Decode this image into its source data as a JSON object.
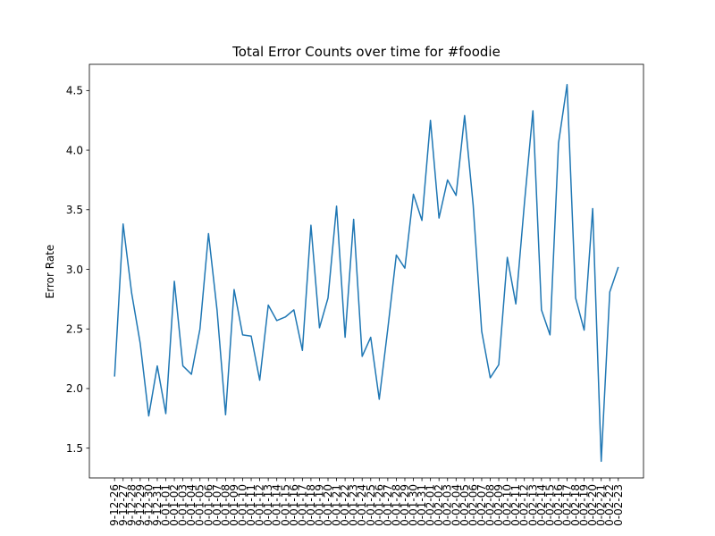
{
  "chart_data": {
    "type": "line",
    "title": "Total Error Counts over time for #foodie",
    "xlabel": "",
    "ylabel": "Error Rate",
    "ylim": [
      1.25,
      4.72
    ],
    "yticks": [
      "1.5",
      "2.0",
      "2.5",
      "3.0",
      "3.5",
      "4.0",
      "4.5"
    ],
    "grid": false,
    "x": [
      "9-12-26",
      "9-12-27",
      "9-12-28",
      "9-12-29",
      "9-12-30",
      "9-12-31",
      "0-01-01",
      "0-01-02",
      "0-01-03",
      "0-01-04",
      "0-01-05",
      "0-01-06",
      "0-01-07",
      "0-01-08",
      "0-01-09",
      "0-01-10",
      "0-01-11",
      "0-01-12",
      "0-01-13",
      "0-01-14",
      "0-01-15",
      "0-01-16",
      "0-01-17",
      "0-01-18",
      "0-01-19",
      "0-01-20",
      "0-01-21",
      "0-01-22",
      "0-01-23",
      "0-01-24",
      "0-01-25",
      "0-01-26",
      "0-01-27",
      "0-01-28",
      "0-01-29",
      "0-01-30",
      "0-01-31",
      "0-02-01",
      "0-02-02",
      "0-02-03",
      "0-02-04",
      "0-02-05",
      "0-02-06",
      "0-02-07",
      "0-02-08",
      "0-02-09",
      "0-02-10",
      "0-02-11",
      "0-02-12",
      "0-02-13",
      "0-02-14",
      "0-02-15",
      "0-02-16",
      "0-02-17",
      "0-02-18",
      "0-02-19",
      "0-02-20",
      "0-02-21",
      "0-02-22",
      "0-02-23"
    ],
    "series": [
      {
        "name": "",
        "values": [
          2.1,
          3.38,
          2.8,
          2.38,
          1.77,
          2.19,
          1.79,
          2.9,
          2.19,
          2.12,
          2.5,
          3.3,
          2.66,
          1.78,
          2.83,
          2.45,
          2.44,
          2.07,
          2.7,
          2.57,
          2.6,
          2.66,
          2.32,
          3.37,
          2.51,
          2.76,
          3.53,
          2.43,
          3.42,
          2.27,
          2.43,
          1.91,
          2.5,
          3.12,
          3.01,
          3.63,
          3.41,
          4.25,
          3.43,
          3.75,
          3.62,
          4.29,
          3.54,
          2.48,
          2.09,
          2.2,
          3.1,
          2.71,
          3.55,
          4.33,
          2.66,
          2.45,
          4.06,
          4.55,
          2.76,
          2.49,
          3.51,
          1.39,
          2.81,
          3.02
        ]
      }
    ],
    "colors": {
      "line": "#1f77b4"
    }
  }
}
